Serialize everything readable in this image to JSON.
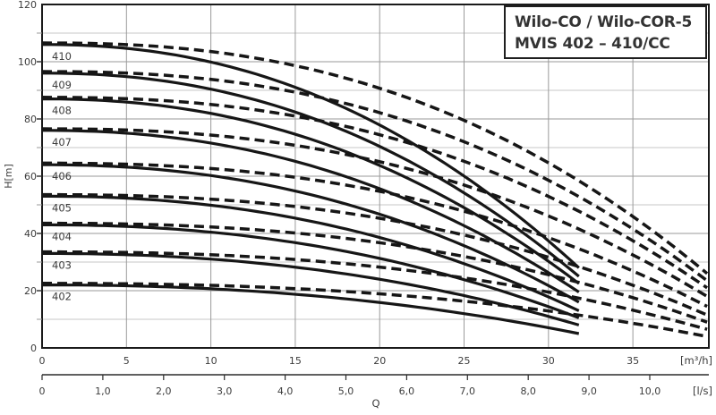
{
  "header": {
    "title_line1": "Wilo-CO / Wilo-COR-5",
    "title_line2": "MVIS 402 – 410/CC"
  },
  "chart_data": {
    "type": "line",
    "title": "Wilo-CO / Wilo-COR-5 MVIS 402 – 410/CC pump performance curves",
    "ylabel": "H[m]",
    "xlabel": "Q",
    "grid": true,
    "legend": "none",
    "y_axis": {
      "min": 0,
      "max": 120,
      "tick_labels": [
        0,
        20,
        40,
        60,
        80,
        100,
        120
      ],
      "grid_step": 10
    },
    "x_axis_primary": {
      "unit": "[m³/h]",
      "ticks": [
        0,
        5,
        10,
        15,
        20,
        25,
        30,
        35
      ],
      "max": 39.5,
      "grid_step": 5
    },
    "x_axis_secondary": {
      "unit": "[l/s]",
      "tick_values": [
        0,
        1,
        2,
        3,
        4,
        5,
        6,
        7,
        8,
        9,
        10
      ],
      "tick_labels": [
        "0",
        "1,0",
        "2,0",
        "3,0",
        "4,0",
        "5,0",
        "6,0",
        "7,0",
        "8,0",
        "9,0",
        "10,0"
      ],
      "m3h_per_unit": 3.6
    },
    "curve_shape": {
      "solid_exponent": 2.2,
      "dashed_exponent": 2.4
    },
    "series": [
      {
        "model": "410",
        "shutoff_head_m": 106,
        "solid": {
          "q_end": 31.8,
          "h_end": 28.0
        },
        "dashed": {
          "q_end": 39.4,
          "h_end": 26.0
        }
      },
      {
        "model": "409",
        "shutoff_head_m": 96,
        "solid": {
          "q_end": 31.8,
          "h_end": 25.0
        },
        "dashed": {
          "q_end": 39.4,
          "h_end": 23.5
        }
      },
      {
        "model": "408",
        "shutoff_head_m": 87,
        "solid": {
          "q_end": 31.8,
          "h_end": 22.5
        },
        "dashed": {
          "q_end": 39.4,
          "h_end": 21.0
        }
      },
      {
        "model": "407",
        "shutoff_head_m": 76,
        "solid": {
          "q_end": 31.8,
          "h_end": 19.5
        },
        "dashed": {
          "q_end": 39.4,
          "h_end": 18.0
        }
      },
      {
        "model": "406",
        "shutoff_head_m": 64,
        "solid": {
          "q_end": 31.8,
          "h_end": 16.0
        },
        "dashed": {
          "q_end": 39.4,
          "h_end": 14.5
        }
      },
      {
        "model": "405",
        "shutoff_head_m": 53,
        "solid": {
          "q_end": 31.8,
          "h_end": 13.0
        },
        "dashed": {
          "q_end": 39.4,
          "h_end": 11.5
        }
      },
      {
        "model": "404",
        "shutoff_head_m": 43,
        "solid": {
          "q_end": 31.8,
          "h_end": 10.5
        },
        "dashed": {
          "q_end": 39.4,
          "h_end": 9.0
        }
      },
      {
        "model": "403",
        "shutoff_head_m": 33,
        "solid": {
          "q_end": 31.8,
          "h_end": 8.0
        },
        "dashed": {
          "q_end": 39.4,
          "h_end": 6.5
        }
      },
      {
        "model": "402",
        "shutoff_head_m": 22,
        "solid": {
          "q_end": 31.8,
          "h_end": 5.0
        },
        "dashed": {
          "q_end": 39.4,
          "h_end": 4.0
        }
      }
    ]
  },
  "colors": {
    "curve": "#161616",
    "grid": "#9a9a9a",
    "grid_minor": "#c7c7c7",
    "border": "#1a1a1a",
    "axis": "#2b2b2b",
    "text": "#3c3c3c",
    "background": "#ffffff"
  }
}
